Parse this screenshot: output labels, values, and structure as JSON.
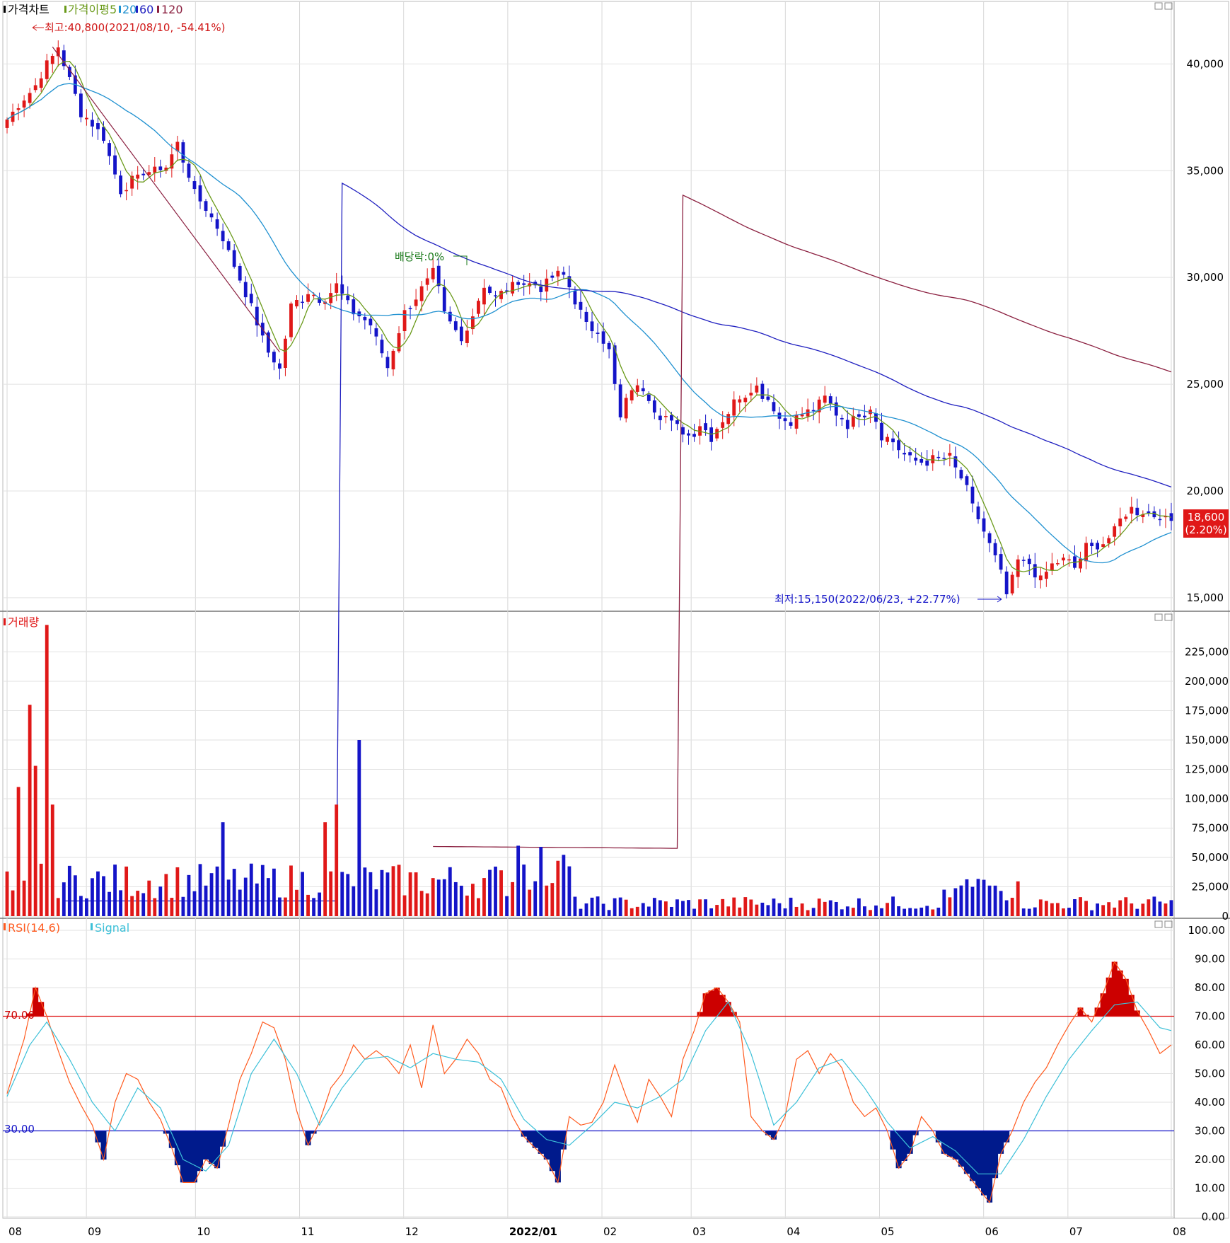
{
  "price_panel": {
    "legend": {
      "title": "가격차트",
      "ma_label": "가격이평",
      "ma_periods": [
        "5",
        "20",
        "60",
        "120"
      ],
      "colors": {
        "ma5": "#6a9a1a",
        "ma20": "#1e90d0",
        "ma60": "#2020c0",
        "ma120": "#8b2040"
      }
    },
    "high_annotation": "최고:40,800(2021/08/10, -54.41%)",
    "low_annotation": "최저:15,150(2022/06/23, +22.77%)",
    "dividend_annotation": "배당락:0%",
    "current_price": "18,600",
    "current_change": "(2.20%)"
  },
  "volume_panel": {
    "title": "거래량"
  },
  "rsi_panel": {
    "title": "RSI(14,6)",
    "signal_label": "Signal",
    "upper_label": "70.00",
    "lower_label": "30.00"
  },
  "colors": {
    "up": "#e01818",
    "down": "#1414c8",
    "rsi": "#ff5a1e",
    "signal": "#3cc0d8",
    "overbought": "#cc0000",
    "oversold": "#001a8c"
  },
  "chart_data": [
    {
      "type": "candlestick",
      "x_months": [
        "08",
        "09",
        "10",
        "11",
        "12",
        "2022/01",
        "02",
        "03",
        "04",
        "05",
        "06",
        "07",
        "08"
      ],
      "ylim": [
        14500,
        42000
      ],
      "y_ticks": [
        "15,000",
        "20,000",
        "25,000",
        "30,000",
        "35,000",
        "40,000"
      ],
      "close_trace": [
        [
          0,
          37400
        ],
        [
          5,
          39000
        ],
        [
          9,
          40800
        ],
        [
          13,
          37800
        ],
        [
          17,
          36500
        ],
        [
          20,
          34000
        ],
        [
          24,
          34900
        ],
        [
          28,
          35200
        ],
        [
          30,
          36300
        ],
        [
          33,
          34000
        ],
        [
          37,
          32400
        ],
        [
          40,
          30600
        ],
        [
          43,
          28500
        ],
        [
          46,
          26500
        ],
        [
          48,
          25700
        ],
        [
          50,
          28700
        ],
        [
          53,
          29300
        ],
        [
          56,
          29000
        ],
        [
          58,
          29600
        ],
        [
          61,
          28400
        ],
        [
          64,
          27800
        ],
        [
          67,
          25800
        ],
        [
          70,
          28300
        ],
        [
          73,
          29400
        ],
        [
          75,
          30300
        ],
        [
          77,
          28300
        ],
        [
          80,
          27000
        ],
        [
          82,
          28300
        ],
        [
          84,
          29600
        ],
        [
          86,
          29100
        ],
        [
          88,
          29500
        ],
        [
          90,
          29800
        ],
        [
          92,
          29700
        ],
        [
          94,
          29600
        ],
        [
          96,
          30000
        ],
        [
          98,
          30100
        ],
        [
          100,
          29000
        ],
        [
          102,
          27800
        ],
        [
          104,
          27500
        ],
        [
          106,
          26500
        ],
        [
          108,
          23400
        ],
        [
          110,
          24800
        ],
        [
          112,
          24900
        ],
        [
          114,
          23800
        ],
        [
          116,
          23500
        ],
        [
          118,
          22900
        ],
        [
          120,
          22600
        ],
        [
          122,
          23100
        ],
        [
          124,
          22600
        ],
        [
          126,
          23300
        ],
        [
          128,
          24200
        ],
        [
          130,
          24600
        ],
        [
          132,
          24900
        ],
        [
          134,
          24300
        ],
        [
          136,
          23400
        ],
        [
          138,
          23200
        ],
        [
          140,
          23600
        ],
        [
          142,
          23900
        ],
        [
          144,
          24400
        ],
        [
          146,
          23600
        ],
        [
          148,
          23200
        ],
        [
          150,
          23600
        ],
        [
          152,
          23900
        ],
        [
          154,
          22700
        ],
        [
          156,
          22300
        ],
        [
          158,
          21700
        ],
        [
          160,
          21400
        ],
        [
          162,
          21300
        ],
        [
          164,
          21500
        ],
        [
          166,
          21500
        ],
        [
          168,
          20600
        ],
        [
          170,
          19300
        ],
        [
          172,
          18100
        ],
        [
          174,
          16900
        ],
        [
          176,
          15150
        ],
        [
          178,
          16700
        ],
        [
          180,
          16600
        ],
        [
          182,
          15900
        ],
        [
          184,
          16500
        ],
        [
          186,
          16800
        ],
        [
          188,
          16400
        ],
        [
          190,
          17300
        ],
        [
          192,
          17400
        ],
        [
          194,
          17800
        ],
        [
          196,
          18600
        ],
        [
          198,
          19200
        ],
        [
          200,
          19000
        ],
        [
          202,
          18900
        ],
        [
          204,
          18700
        ],
        [
          205,
          18600
        ]
      ],
      "moving_average_periods": [
        5,
        20,
        60,
        120
      ],
      "last_price": 18600,
      "last_change_pct": 2.2,
      "high": {
        "value": 40800,
        "date": "2021/08/10"
      },
      "low": {
        "value": 15150,
        "date": "2022/06/23"
      }
    },
    {
      "type": "bar",
      "title": "거래량",
      "ylim": [
        0,
        250000
      ],
      "y_ticks": [
        "0",
        "25,000",
        "50,000",
        "75,000",
        "100,000",
        "125,000",
        "150,000",
        "175,000",
        "200,000",
        "225,000"
      ],
      "spikes": [
        [
          2,
          110000
        ],
        [
          4,
          180000
        ],
        [
          5,
          128000
        ],
        [
          7,
          248000
        ],
        [
          8,
          95000
        ],
        [
          38,
          80000
        ],
        [
          58,
          95000
        ],
        [
          56,
          80000
        ],
        [
          62,
          150000
        ],
        [
          90,
          60000
        ],
        [
          94,
          59000
        ]
      ]
    },
    {
      "type": "line",
      "title": "RSI(14,6)",
      "ylim": [
        0,
        100
      ],
      "y_ticks": [
        "0.00",
        "10.00",
        "20.00",
        "30.00",
        "40.00",
        "50.00",
        "60.00",
        "70.00",
        "80.00",
        "90.00",
        "100.00"
      ],
      "levels": [
        70,
        30
      ],
      "series": [
        {
          "name": "RSI(14,6)",
          "values": [
            [
              0,
              43
            ],
            [
              3,
              62
            ],
            [
              5,
              80
            ],
            [
              7,
              70
            ],
            [
              9,
              58
            ],
            [
              11,
              47
            ],
            [
              13,
              39
            ],
            [
              15,
              32
            ],
            [
              17,
              20
            ],
            [
              19,
              40
            ],
            [
              21,
              50
            ],
            [
              23,
              48
            ],
            [
              25,
              40
            ],
            [
              27,
              34
            ],
            [
              29,
              24
            ],
            [
              31,
              12
            ],
            [
              33,
              12
            ],
            [
              35,
              20
            ],
            [
              37,
              17
            ],
            [
              39,
              32
            ],
            [
              41,
              48
            ],
            [
              43,
              57
            ],
            [
              45,
              68
            ],
            [
              47,
              66
            ],
            [
              49,
              55
            ],
            [
              51,
              37
            ],
            [
              53,
              25
            ],
            [
              55,
              33
            ],
            [
              57,
              45
            ],
            [
              59,
              50
            ],
            [
              61,
              60
            ],
            [
              63,
              55
            ],
            [
              65,
              58
            ],
            [
              67,
              55
            ],
            [
              69,
              50
            ],
            [
              71,
              60
            ],
            [
              73,
              45
            ],
            [
              75,
              67
            ],
            [
              77,
              50
            ],
            [
              79,
              55
            ],
            [
              81,
              62
            ],
            [
              83,
              57
            ],
            [
              85,
              48
            ],
            [
              87,
              45
            ],
            [
              89,
              35
            ],
            [
              91,
              28
            ],
            [
              93,
              24
            ],
            [
              95,
              20
            ],
            [
              97,
              12
            ],
            [
              99,
              35
            ],
            [
              101,
              32
            ],
            [
              103,
              33
            ],
            [
              105,
              40
            ],
            [
              107,
              53
            ],
            [
              109,
              42
            ],
            [
              111,
              33
            ],
            [
              113,
              48
            ],
            [
              115,
              42
            ],
            [
              117,
              35
            ],
            [
              119,
              55
            ],
            [
              121,
              65
            ],
            [
              123,
              78
            ],
            [
              125,
              80
            ],
            [
              127,
              75
            ],
            [
              129,
              68
            ],
            [
              131,
              35
            ],
            [
              133,
              30
            ],
            [
              135,
              27
            ],
            [
              137,
              35
            ],
            [
              139,
              55
            ],
            [
              141,
              58
            ],
            [
              143,
              50
            ],
            [
              145,
              57
            ],
            [
              147,
              52
            ],
            [
              149,
              40
            ],
            [
              151,
              35
            ],
            [
              153,
              38
            ],
            [
              155,
              30
            ],
            [
              157,
              17
            ],
            [
              159,
              22
            ],
            [
              161,
              35
            ],
            [
              163,
              30
            ],
            [
              165,
              22
            ],
            [
              167,
              20
            ],
            [
              169,
              15
            ],
            [
              171,
              10
            ],
            [
              173,
              5
            ],
            [
              175,
              22
            ],
            [
              177,
              30
            ],
            [
              179,
              40
            ],
            [
              181,
              47
            ],
            [
              183,
              52
            ],
            [
              185,
              60
            ],
            [
              187,
              67
            ],
            [
              189,
              73
            ],
            [
              191,
              68
            ],
            [
              193,
              78
            ],
            [
              195,
              89
            ],
            [
              197,
              83
            ],
            [
              199,
              72
            ],
            [
              201,
              65
            ],
            [
              203,
              57
            ],
            [
              205,
              60
            ]
          ]
        },
        {
          "name": "Signal",
          "values": [
            [
              0,
              42
            ],
            [
              4,
              60
            ],
            [
              7,
              68
            ],
            [
              11,
              55
            ],
            [
              15,
              40
            ],
            [
              19,
              30
            ],
            [
              23,
              45
            ],
            [
              27,
              38
            ],
            [
              31,
              20
            ],
            [
              35,
              16
            ],
            [
              39,
              25
            ],
            [
              43,
              50
            ],
            [
              47,
              62
            ],
            [
              51,
              50
            ],
            [
              55,
              32
            ],
            [
              59,
              45
            ],
            [
              63,
              55
            ],
            [
              67,
              56
            ],
            [
              71,
              52
            ],
            [
              75,
              57
            ],
            [
              79,
              55
            ],
            [
              83,
              54
            ],
            [
              87,
              48
            ],
            [
              91,
              34
            ],
            [
              95,
              27
            ],
            [
              99,
              25
            ],
            [
              103,
              32
            ],
            [
              107,
              40
            ],
            [
              111,
              38
            ],
            [
              115,
              42
            ],
            [
              119,
              48
            ],
            [
              123,
              65
            ],
            [
              127,
              75
            ],
            [
              131,
              57
            ],
            [
              135,
              32
            ],
            [
              139,
              40
            ],
            [
              143,
              52
            ],
            [
              147,
              55
            ],
            [
              151,
              45
            ],
            [
              155,
              33
            ],
            [
              159,
              24
            ],
            [
              163,
              28
            ],
            [
              167,
              23
            ],
            [
              171,
              15
            ],
            [
              175,
              15
            ],
            [
              179,
              27
            ],
            [
              183,
              42
            ],
            [
              187,
              55
            ],
            [
              191,
              65
            ],
            [
              195,
              74
            ],
            [
              199,
              75
            ],
            [
              203,
              66
            ],
            [
              205,
              65
            ]
          ]
        }
      ]
    }
  ]
}
